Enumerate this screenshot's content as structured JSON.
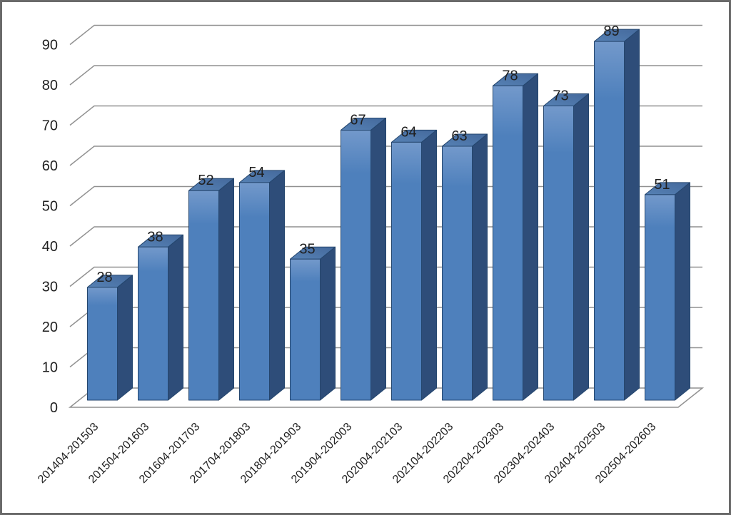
{
  "window": {
    "background": "#ffffff",
    "frame_border_color": "#6a6a6a"
  },
  "chart_data": {
    "type": "bar",
    "variant": "3d-column",
    "title": "",
    "xlabel": "",
    "ylabel": "",
    "categories": [
      "201404-201503",
      "201504-201603",
      "201604-201703",
      "201704-201803",
      "201804-201903",
      "201904-202003",
      "202004-202103",
      "202104-202203",
      "202204-202303",
      "202304-202403",
      "202404-202503",
      "202504-202603"
    ],
    "values": [
      28,
      38,
      52,
      54,
      35,
      67,
      64,
      63,
      78,
      73,
      89,
      51
    ],
    "data_labels": [
      "28",
      "38",
      "52",
      "54",
      "35",
      "67",
      "64",
      "63",
      "78",
      "73",
      "89",
      "51"
    ],
    "data_labels_shown": true,
    "ylim": [
      0,
      90
    ],
    "ytick_interval": 10,
    "yticks": [
      0,
      10,
      20,
      30,
      40,
      50,
      60,
      70,
      80,
      90
    ],
    "grid": "horizontal",
    "legend": false,
    "series_count": 1,
    "colors": {
      "bar_front": "#4e80bc",
      "bar_front_highlight": "#7399cb",
      "bar_top": "#44699c",
      "bar_top_light": "#5681b4",
      "bar_side": "#2e4d79",
      "bar_edge": "#24466e",
      "gridline": "#919191",
      "text": "#1f1f1f"
    }
  }
}
